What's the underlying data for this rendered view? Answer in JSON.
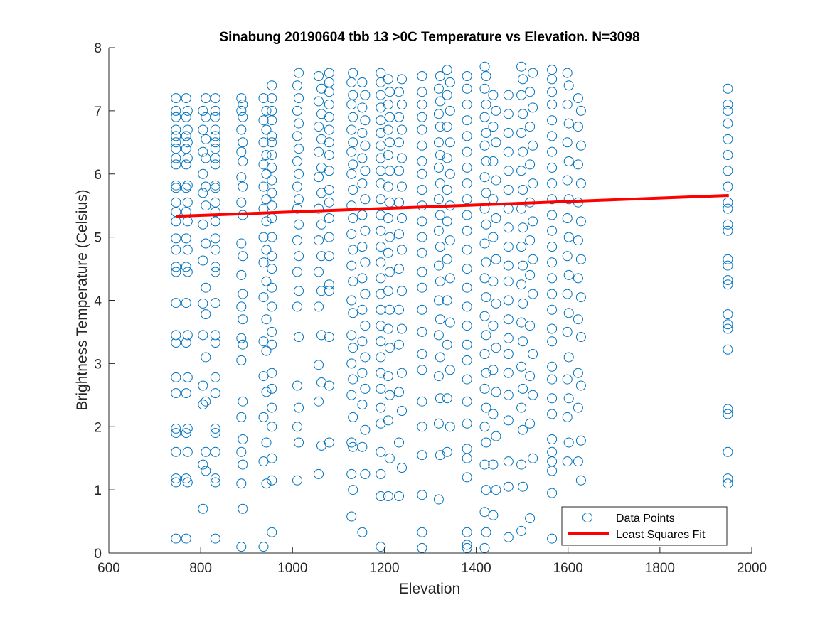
{
  "chart_data": {
    "type": "scatter",
    "title": "Sinabung 20190604 tbb 13 >0C Temperature vs Elevation. N=3098",
    "xlabel": "Elevation",
    "ylabel": "Brightness Temperature (Celsius)",
    "xlim": [
      600,
      2000
    ],
    "ylim": [
      0,
      8
    ],
    "xticks": [
      "600",
      "800",
      "1000",
      "1200",
      "1400",
      "1600",
      "1800",
      "2000"
    ],
    "yticks": [
      "0",
      "1",
      "2",
      "3",
      "4",
      "5",
      "6",
      "7",
      "8"
    ],
    "grid": false,
    "legend": {
      "position": "bottom-right",
      "entries": [
        "Data Points",
        "Least Squares Fit"
      ]
    },
    "colors": {
      "points": "#0072BD",
      "fit": "#FF0000"
    },
    "fit_line": {
      "x": [
        746,
        1950
      ],
      "y": [
        5.33,
        5.66
      ]
    },
    "columns": [
      {
        "x": 746,
        "y": [
          0.23,
          1.12,
          1.18,
          1.6,
          1.9,
          1.97,
          2.53,
          2.78,
          3.33,
          3.45,
          3.96,
          4.45,
          4.53,
          4.8,
          4.98,
          5.25,
          5.4,
          5.55,
          5.78,
          5.82,
          6.15,
          6.25,
          6.4,
          6.5,
          6.6,
          6.7,
          6.9,
          7.0,
          7.2
        ]
      },
      {
        "x": 770,
        "y": [
          0.23,
          1.12,
          1.18,
          1.6,
          1.9,
          1.97,
          2.53,
          2.78,
          3.33,
          3.45,
          3.96,
          4.45,
          4.53,
          4.8,
          4.98,
          5.25,
          5.4,
          5.55,
          5.78,
          5.82,
          6.15,
          6.25,
          6.4,
          6.5,
          6.6,
          6.7,
          6.9,
          7.0,
          7.2
        ]
      },
      {
        "x": 808,
        "y": [
          0.7,
          1.3,
          1.4,
          1.6,
          2.35,
          2.4,
          2.65,
          3.1,
          3.45,
          3.78,
          3.95,
          4.2,
          4.63,
          4.9,
          5.2,
          5.5,
          5.7,
          5.8,
          6.0,
          6.25,
          6.35,
          6.55,
          6.7,
          6.9,
          7.0,
          7.2
        ]
      },
      {
        "x": 832,
        "y": [
          0.23,
          1.12,
          1.18,
          1.6,
          1.9,
          1.97,
          2.53,
          2.78,
          3.33,
          3.45,
          3.96,
          4.45,
          4.53,
          4.8,
          4.98,
          5.25,
          5.4,
          5.55,
          5.78,
          5.82,
          6.15,
          6.25,
          6.4,
          6.5,
          6.6,
          6.7,
          6.9,
          7.0,
          7.2
        ]
      },
      {
        "x": 890,
        "y": [
          0.1,
          0.7,
          1.1,
          1.4,
          1.6,
          1.8,
          2.15,
          2.4,
          3.05,
          3.3,
          3.4,
          3.7,
          3.9,
          4.1,
          4.4,
          4.7,
          4.9,
          5.35,
          5.55,
          5.8,
          5.95,
          6.2,
          6.35,
          6.5,
          6.7,
          6.9,
          7.0,
          7.1,
          7.2
        ]
      },
      {
        "x": 940,
        "y": [
          0.1,
          1.1,
          1.45,
          1.75,
          2.15,
          2.55,
          2.8,
          3.2,
          3.35,
          3.7,
          4.05,
          4.3,
          4.6,
          4.8,
          5.0,
          5.25,
          5.45,
          5.6,
          5.8,
          6.0,
          6.15,
          6.3,
          6.5,
          6.7,
          6.85,
          7.0,
          7.2
        ]
      },
      {
        "x": 955,
        "y": [
          0.33,
          1.15,
          1.5,
          2.0,
          2.3,
          2.6,
          2.85,
          3.3,
          3.5,
          3.9,
          4.2,
          4.5,
          4.7,
          5.0,
          5.3,
          5.5,
          5.7,
          5.9,
          6.1,
          6.3,
          6.5,
          6.6,
          6.85,
          7.0,
          7.2,
          7.4
        ]
      },
      {
        "x": 1012,
        "y": [
          1.15,
          1.75,
          2.0,
          2.3,
          2.65,
          3.42,
          3.9,
          4.15,
          4.45,
          4.7,
          4.95,
          5.2,
          5.45,
          5.6,
          5.8,
          6.0,
          6.2,
          6.4,
          6.6,
          6.8,
          7.0,
          7.2,
          7.4,
          7.6
        ]
      },
      {
        "x": 1060,
        "y": [
          1.25,
          1.7,
          2.4,
          2.7,
          2.98,
          3.45,
          3.9,
          4.15,
          4.45,
          4.7,
          4.95,
          5.2,
          5.45,
          5.7,
          5.95,
          6.1,
          6.35,
          6.55,
          6.75,
          6.95,
          7.15,
          7.35,
          7.55
        ]
      },
      {
        "x": 1080,
        "y": [
          1.75,
          2.65,
          3.42,
          4.15,
          4.25,
          4.7,
          5.0,
          5.3,
          5.55,
          5.75,
          6.05,
          6.3,
          6.5,
          6.7,
          6.9,
          7.1,
          7.3,
          7.45,
          7.6
        ]
      },
      {
        "x": 1130,
        "y": [
          0.58,
          1.0,
          1.25,
          1.68,
          1.75,
          2.15,
          2.5,
          2.75,
          3.0,
          3.25,
          3.45,
          3.8,
          4.0,
          4.3,
          4.55,
          4.8,
          5.05,
          5.3,
          5.5,
          5.75,
          6.0,
          6.15,
          6.35,
          6.5,
          6.7,
          6.9,
          7.1,
          7.25,
          7.45,
          7.6
        ]
      },
      {
        "x": 1155,
        "y": [
          0.33,
          1.25,
          1.68,
          1.95,
          2.35,
          2.6,
          2.85,
          3.1,
          3.35,
          3.6,
          3.85,
          4.1,
          4.35,
          4.6,
          4.85,
          5.1,
          5.35,
          5.6,
          5.85,
          6.05,
          6.25,
          6.45,
          6.65,
          6.85,
          7.05,
          7.25,
          7.45
        ]
      },
      {
        "x": 1192,
        "y": [
          0.1,
          0.9,
          1.25,
          1.6,
          2.05,
          2.3,
          2.6,
          2.85,
          3.1,
          3.35,
          3.6,
          3.85,
          4.1,
          4.35,
          4.6,
          4.85,
          5.1,
          5.35,
          5.6,
          5.85,
          6.05,
          6.25,
          6.45,
          6.65,
          6.85,
          7.05,
          7.25,
          7.45,
          7.6
        ]
      },
      {
        "x": 1210,
        "y": [
          0.9,
          1.5,
          2.1,
          2.5,
          2.8,
          3.25,
          3.55,
          3.85,
          4.15,
          4.45,
          4.75,
          5.0,
          5.3,
          5.55,
          5.8,
          6.05,
          6.3,
          6.5,
          6.7,
          6.9,
          7.1,
          7.3,
          7.5
        ]
      },
      {
        "x": 1235,
        "y": [
          0.9,
          1.35,
          1.75,
          2.25,
          2.55,
          2.85,
          3.3,
          3.55,
          3.85,
          4.15,
          4.5,
          4.8,
          5.05,
          5.3,
          5.55,
          5.8,
          6.05,
          6.25,
          6.5,
          6.7,
          6.9,
          7.1,
          7.3,
          7.5
        ]
      },
      {
        "x": 1282,
        "y": [
          0.08,
          0.33,
          0.92,
          1.55,
          2.0,
          2.4,
          2.9,
          3.15,
          3.5,
          3.85,
          4.2,
          4.45,
          4.75,
          5.0,
          5.25,
          5.5,
          5.75,
          6.0,
          6.2,
          6.45,
          6.7,
          6.9,
          7.1,
          7.3,
          7.55
        ]
      },
      {
        "x": 1320,
        "y": [
          0.85,
          1.55,
          2.05,
          2.45,
          2.8,
          3.1,
          3.45,
          3.7,
          4.0,
          4.3,
          4.55,
          4.85,
          5.1,
          5.35,
          5.6,
          5.85,
          6.1,
          6.3,
          6.5,
          6.75,
          6.95,
          7.15,
          7.35,
          7.55
        ]
      },
      {
        "x": 1340,
        "y": [
          1.6,
          2.0,
          2.45,
          2.9,
          3.3,
          3.65,
          4.0,
          4.35,
          4.65,
          4.95,
          5.25,
          5.5,
          5.75,
          6.0,
          6.25,
          6.5,
          6.75,
          7.0,
          7.25,
          7.45,
          7.65
        ]
      },
      {
        "x": 1380,
        "y": [
          0.08,
          0.13,
          0.33,
          1.2,
          1.5,
          1.65,
          2.05,
          2.4,
          2.75,
          3.05,
          3.3,
          3.6,
          3.9,
          4.2,
          4.5,
          4.8,
          5.1,
          5.35,
          5.6,
          5.85,
          6.1,
          6.35,
          6.6,
          6.85,
          7.1,
          7.35,
          7.55
        ]
      },
      {
        "x": 1420,
        "y": [
          0.08,
          0.33,
          0.65,
          1.0,
          1.4,
          1.75,
          2.0,
          2.3,
          2.6,
          2.85,
          3.15,
          3.45,
          3.75,
          4.05,
          4.35,
          4.6,
          4.9,
          5.2,
          5.45,
          5.7,
          5.95,
          6.2,
          6.45,
          6.65,
          6.9,
          7.1,
          7.35,
          7.55,
          7.7
        ]
      },
      {
        "x": 1440,
        "y": [
          0.6,
          1.0,
          1.4,
          1.85,
          2.2,
          2.55,
          2.9,
          3.25,
          3.6,
          3.95,
          4.3,
          4.65,
          5.0,
          5.3,
          5.6,
          5.9,
          6.2,
          6.5,
          6.75,
          7.0,
          7.25
        ]
      },
      {
        "x": 1470,
        "y": [
          0.25,
          1.05,
          1.45,
          2.1,
          2.5,
          2.85,
          3.15,
          3.4,
          3.7,
          4.0,
          4.3,
          4.55,
          4.85,
          5.15,
          5.45,
          5.75,
          6.05,
          6.35,
          6.65,
          6.95,
          7.25
        ]
      },
      {
        "x": 1500,
        "y": [
          0.35,
          1.05,
          1.4,
          1.95,
          2.3,
          2.6,
          2.95,
          3.35,
          3.65,
          3.95,
          4.25,
          4.55,
          4.85,
          5.15,
          5.45,
          5.75,
          6.05,
          6.35,
          6.65,
          6.95,
          7.25,
          7.5,
          7.7
        ]
      },
      {
        "x": 1520,
        "y": [
          0.55,
          1.5,
          2.05,
          2.5,
          2.8,
          3.15,
          3.6,
          4.1,
          4.4,
          4.65,
          4.95,
          5.25,
          5.55,
          5.85,
          6.15,
          6.45,
          6.75,
          7.05,
          7.3,
          7.6
        ]
      },
      {
        "x": 1565,
        "y": [
          0.23,
          0.95,
          1.3,
          1.45,
          1.6,
          1.8,
          2.2,
          2.45,
          2.75,
          2.95,
          3.35,
          3.55,
          3.85,
          4.1,
          4.35,
          4.6,
          4.85,
          5.1,
          5.35,
          5.6,
          5.85,
          6.1,
          6.35,
          6.6,
          6.85,
          7.1,
          7.3,
          7.5,
          7.65
        ]
      },
      {
        "x": 1600,
        "y": [
          1.45,
          1.75,
          2.15,
          2.45,
          2.75,
          3.1,
          3.5,
          3.8,
          4.1,
          4.4,
          4.7,
          5.0,
          5.3,
          5.6,
          5.9,
          6.2,
          6.5,
          6.8,
          7.1,
          7.4,
          7.6
        ]
      },
      {
        "x": 1625,
        "y": [
          0.33,
          1.15,
          1.45,
          1.78,
          2.3,
          2.65,
          2.85,
          3.42,
          3.7,
          4.05,
          4.35,
          4.65,
          4.95,
          5.25,
          5.55,
          5.85,
          6.15,
          6.45,
          6.75,
          7.0,
          7.2
        ]
      },
      {
        "x": 1948,
        "y": [
          1.1,
          1.18,
          1.6,
          2.2,
          2.28,
          3.22,
          3.55,
          3.62,
          3.78,
          4.25,
          4.32,
          4.55,
          4.65,
          5.1,
          5.2,
          5.45,
          5.55,
          5.8,
          6.05,
          6.3,
          6.55,
          6.8,
          7.0,
          7.1,
          7.35
        ]
      }
    ]
  }
}
